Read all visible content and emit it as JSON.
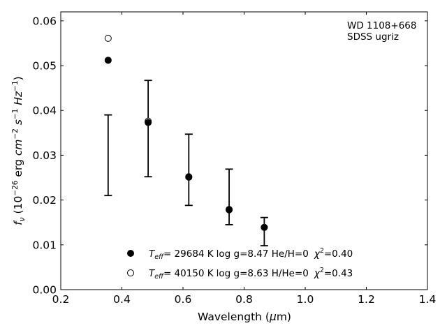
{
  "chart_data": {
    "type": "scatter",
    "xlabel": "Wavelength (μm)",
    "ylabel": "f_ν (10^−26 erg cm^−2 s^−1 Hz^−1)",
    "xlim": [
      0.2,
      1.4
    ],
    "ylim": [
      0.0,
      0.062
    ],
    "x_ticks": [
      "0.2",
      "0.4",
      "0.6",
      "0.8",
      "1.0",
      "1.2",
      "1.4"
    ],
    "y_ticks": [
      "0.00",
      "0.01",
      "0.02",
      "0.03",
      "0.04",
      "0.05",
      "0.06"
    ],
    "grid": false,
    "annotation_lines": [
      "WD 1108+668",
      "SDSS ugriz"
    ],
    "observed": {
      "x": [
        0.355,
        0.486,
        0.619,
        0.751,
        0.866
      ],
      "y_low": [
        0.021,
        0.0252,
        0.0188,
        0.0145,
        0.0098
      ],
      "y_high": [
        0.039,
        0.0467,
        0.0347,
        0.0269,
        0.0161
      ]
    },
    "series": [
      {
        "marker": "filled-circle",
        "x": [
          0.355,
          0.486,
          0.619,
          0.751,
          0.866
        ],
        "y": [
          0.0512,
          0.0373,
          0.0251,
          0.0178,
          0.0139
        ],
        "legend": {
          "teff_value": "= 29684 K",
          "rest": "log g=8.47  He/H=0",
          "chi_value": "=0.40"
        }
      },
      {
        "marker": "open-circle",
        "x": [
          0.355,
          0.486,
          0.619,
          0.751,
          0.866
        ],
        "y": [
          0.0561,
          0.0376,
          0.0252,
          0.0179,
          0.0139
        ],
        "legend": {
          "teff_value": "= 40150 K",
          "rest": "log g=8.63  H/He=0",
          "chi_value": "=0.43"
        }
      }
    ],
    "legend_placement": "bottom-center"
  }
}
